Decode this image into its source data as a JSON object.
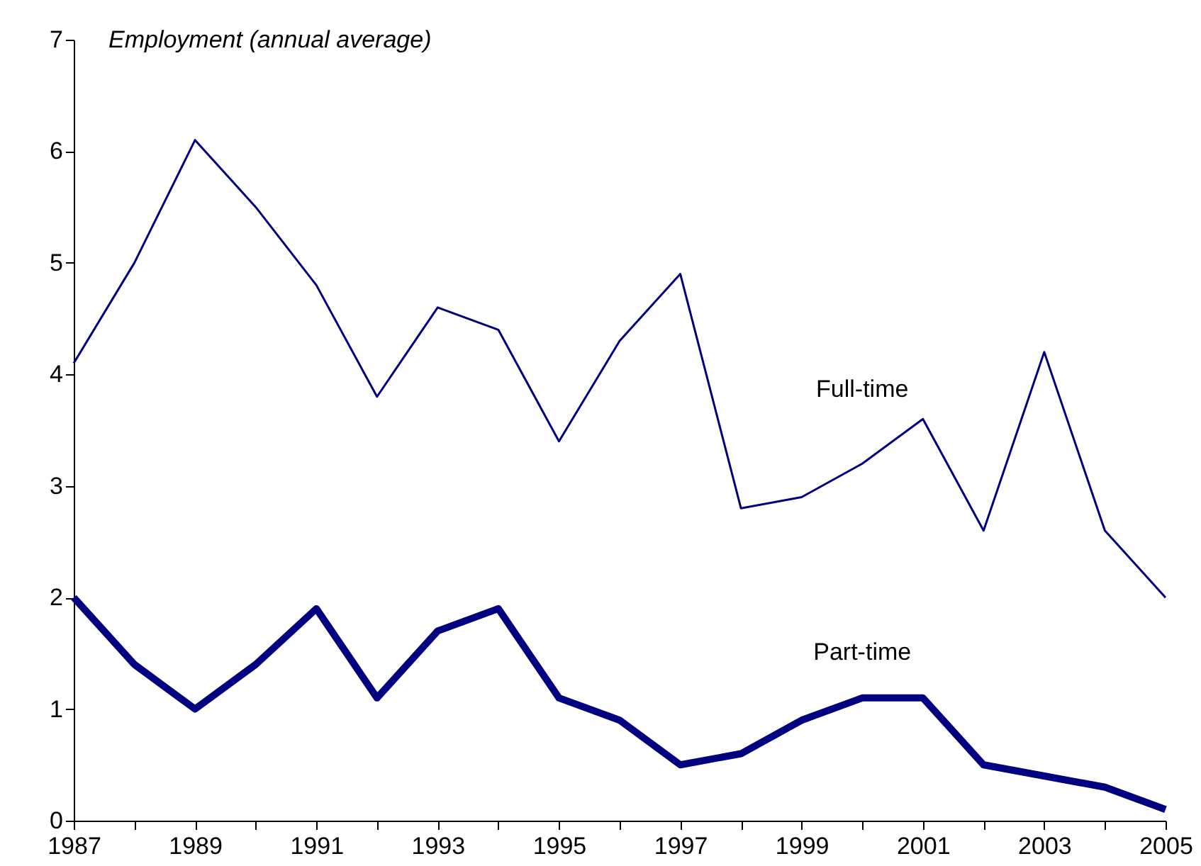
{
  "chart_data": {
    "type": "line",
    "ylabel": "Employment (annual average)",
    "x": [
      1987,
      1988,
      1989,
      1990,
      1991,
      1992,
      1993,
      1994,
      1995,
      1996,
      1997,
      1998,
      1999,
      2000,
      2001,
      2002,
      2003,
      2004,
      2005
    ],
    "series": [
      {
        "name": "Full-time",
        "color": "#000080",
        "values": [
          4.1,
          5.0,
          6.1,
          5.5,
          4.8,
          3.8,
          4.6,
          4.4,
          3.4,
          4.3,
          4.9,
          2.8,
          2.9,
          3.2,
          3.6,
          2.6,
          4.2,
          2.6,
          2.0
        ]
      },
      {
        "name": "Part-time",
        "color": "#000080",
        "values": [
          2.0,
          1.4,
          1.0,
          1.4,
          1.9,
          1.1,
          1.7,
          1.9,
          1.1,
          0.9,
          0.5,
          0.6,
          0.9,
          1.1,
          1.1,
          0.5,
          0.4,
          0.3,
          0.1
        ]
      }
    ],
    "xlim": [
      1987,
      2005
    ],
    "xticks": [
      1987,
      {
        "value": 1988,
        "label": null
      },
      1989,
      {
        "value": 1990,
        "label": null
      },
      1991,
      {
        "value": 1992,
        "label": null
      },
      1993,
      {
        "value": 1994,
        "label": null
      },
      1995,
      {
        "value": 1996,
        "label": null
      },
      1997,
      {
        "value": 1998,
        "label": null
      },
      1999,
      {
        "value": 2000,
        "label": null
      },
      2001,
      {
        "value": 2002,
        "label": null
      },
      2003,
      {
        "value": 2004,
        "label": null
      },
      2005
    ],
    "ylim": [
      0,
      7
    ],
    "yticks": [
      0,
      1,
      2,
      3,
      4,
      5,
      6,
      7
    ],
    "grid": false,
    "legend": false,
    "marker": "none",
    "line_style": "solid"
  }
}
